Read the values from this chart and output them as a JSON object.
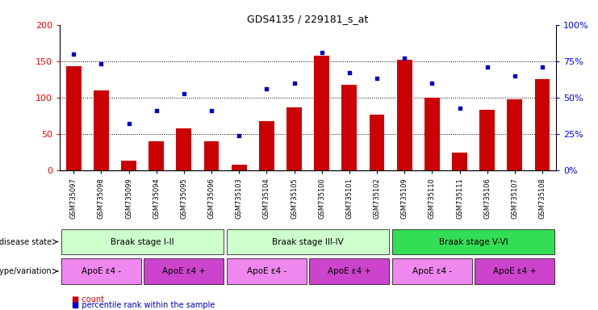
{
  "title": "GDS4135 / 229181_s_at",
  "samples": [
    "GSM735097",
    "GSM735098",
    "GSM735099",
    "GSM735094",
    "GSM735095",
    "GSM735096",
    "GSM735103",
    "GSM735104",
    "GSM735105",
    "GSM735100",
    "GSM735101",
    "GSM735102",
    "GSM735109",
    "GSM735110",
    "GSM735111",
    "GSM735106",
    "GSM735107",
    "GSM735108"
  ],
  "counts": [
    143,
    110,
    13,
    40,
    58,
    40,
    8,
    68,
    87,
    158,
    118,
    77,
    152,
    100,
    25,
    83,
    98,
    125
  ],
  "percentiles_pct": [
    80,
    73,
    32,
    41,
    53,
    41,
    24,
    56,
    60,
    81,
    67,
    63,
    77,
    60,
    43,
    71,
    65,
    71
  ],
  "bar_color": "#cc0000",
  "dot_color": "#0000cc",
  "left_ylim": [
    0,
    200
  ],
  "right_ylim": [
    0,
    100
  ],
  "left_yticks": [
    0,
    50,
    100,
    150,
    200
  ],
  "right_yticks": [
    0,
    25,
    50,
    75,
    100
  ],
  "grid_lines": [
    50,
    100,
    150
  ],
  "disease_groups": [
    {
      "label": "Braak stage I-II",
      "start": 0,
      "end": 6,
      "color": "#ccffcc"
    },
    {
      "label": "Braak stage III-IV",
      "start": 6,
      "end": 12,
      "color": "#ccffcc"
    },
    {
      "label": "Braak stage V-VI",
      "start": 12,
      "end": 18,
      "color": "#33dd55"
    }
  ],
  "genotype_groups": [
    {
      "label": "ApoE ε4 -",
      "start": 0,
      "end": 3,
      "color": "#ee88ee"
    },
    {
      "label": "ApoE ε4 +",
      "start": 3,
      "end": 6,
      "color": "#cc44cc"
    },
    {
      "label": "ApoE ε4 -",
      "start": 6,
      "end": 9,
      "color": "#ee88ee"
    },
    {
      "label": "ApoE ε4 +",
      "start": 9,
      "end": 12,
      "color": "#cc44cc"
    },
    {
      "label": "ApoE ε4 -",
      "start": 12,
      "end": 15,
      "color": "#ee88ee"
    },
    {
      "label": "ApoE ε4 +",
      "start": 15,
      "end": 18,
      "color": "#cc44cc"
    }
  ],
  "disease_row_label": "disease state",
  "genotype_row_label": "genotype/variation",
  "legend_count_label": "count",
  "legend_percentile_label": "percentile rank within the sample",
  "bar_width": 0.55
}
